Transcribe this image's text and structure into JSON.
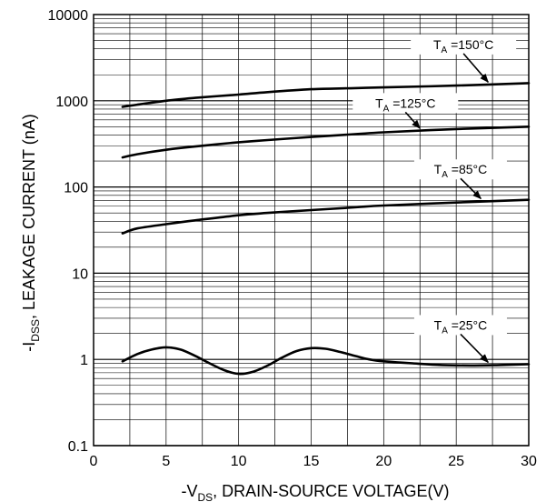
{
  "chart_data": {
    "type": "line",
    "title": "",
    "xlabel": {
      "prefix": "-V",
      "sub": "DS",
      "suffix": ", DRAIN-SOURCE VOLTAGE(V)"
    },
    "ylabel": {
      "prefix": "-I",
      "sub": "DSS",
      "suffix": ", LEAKAGE CURRENT (nA)"
    },
    "x_scale": "linear",
    "y_scale": "log",
    "xlim": [
      0,
      30
    ],
    "ylim": [
      0.1,
      10000
    ],
    "x_ticks": [
      "0",
      "5",
      "10",
      "15",
      "20",
      "25",
      "30"
    ],
    "y_ticks": [
      "0.1",
      "1",
      "10",
      "100",
      "1000",
      "10000"
    ],
    "grid": true,
    "series": [
      {
        "name": "150°C",
        "label": {
          "prefix": "T",
          "sub": "A",
          "suffix": " =150°C"
        },
        "x": [
          2,
          3,
          5,
          7,
          10,
          12,
          15,
          18,
          20,
          25,
          30
        ],
        "y": [
          850,
          900,
          1000,
          1080,
          1180,
          1260,
          1360,
          1400,
          1430,
          1500,
          1600
        ]
      },
      {
        "name": "125°C",
        "label": {
          "prefix": "T",
          "sub": "A",
          "suffix": " =125°C"
        },
        "x": [
          2,
          3,
          5,
          7,
          10,
          12,
          15,
          18,
          20,
          25,
          30
        ],
        "y": [
          220,
          240,
          270,
          295,
          330,
          350,
          380,
          410,
          430,
          470,
          500
        ]
      },
      {
        "name": "85°C",
        "label": {
          "prefix": "T",
          "sub": "A",
          "suffix": " =85°C"
        },
        "x": [
          2,
          3,
          5,
          7,
          10,
          12,
          15,
          18,
          20,
          25,
          30
        ],
        "y": [
          29,
          33,
          37,
          41,
          47,
          50,
          54,
          58,
          61,
          66,
          71
        ]
      },
      {
        "name": "25°C",
        "label": {
          "prefix": "T",
          "sub": "A",
          "suffix": " =25°C"
        },
        "x": [
          2,
          3,
          4,
          5,
          6,
          7,
          8,
          9,
          10,
          11,
          12,
          13,
          14,
          15,
          16,
          17,
          18,
          19,
          20,
          22,
          24,
          26,
          28,
          30
        ],
        "y": [
          0.95,
          1.15,
          1.3,
          1.38,
          1.3,
          1.1,
          0.9,
          0.75,
          0.68,
          0.72,
          0.85,
          1.05,
          1.25,
          1.35,
          1.33,
          1.22,
          1.1,
          1.0,
          0.95,
          0.9,
          0.86,
          0.85,
          0.86,
          0.88
        ]
      }
    ]
  }
}
